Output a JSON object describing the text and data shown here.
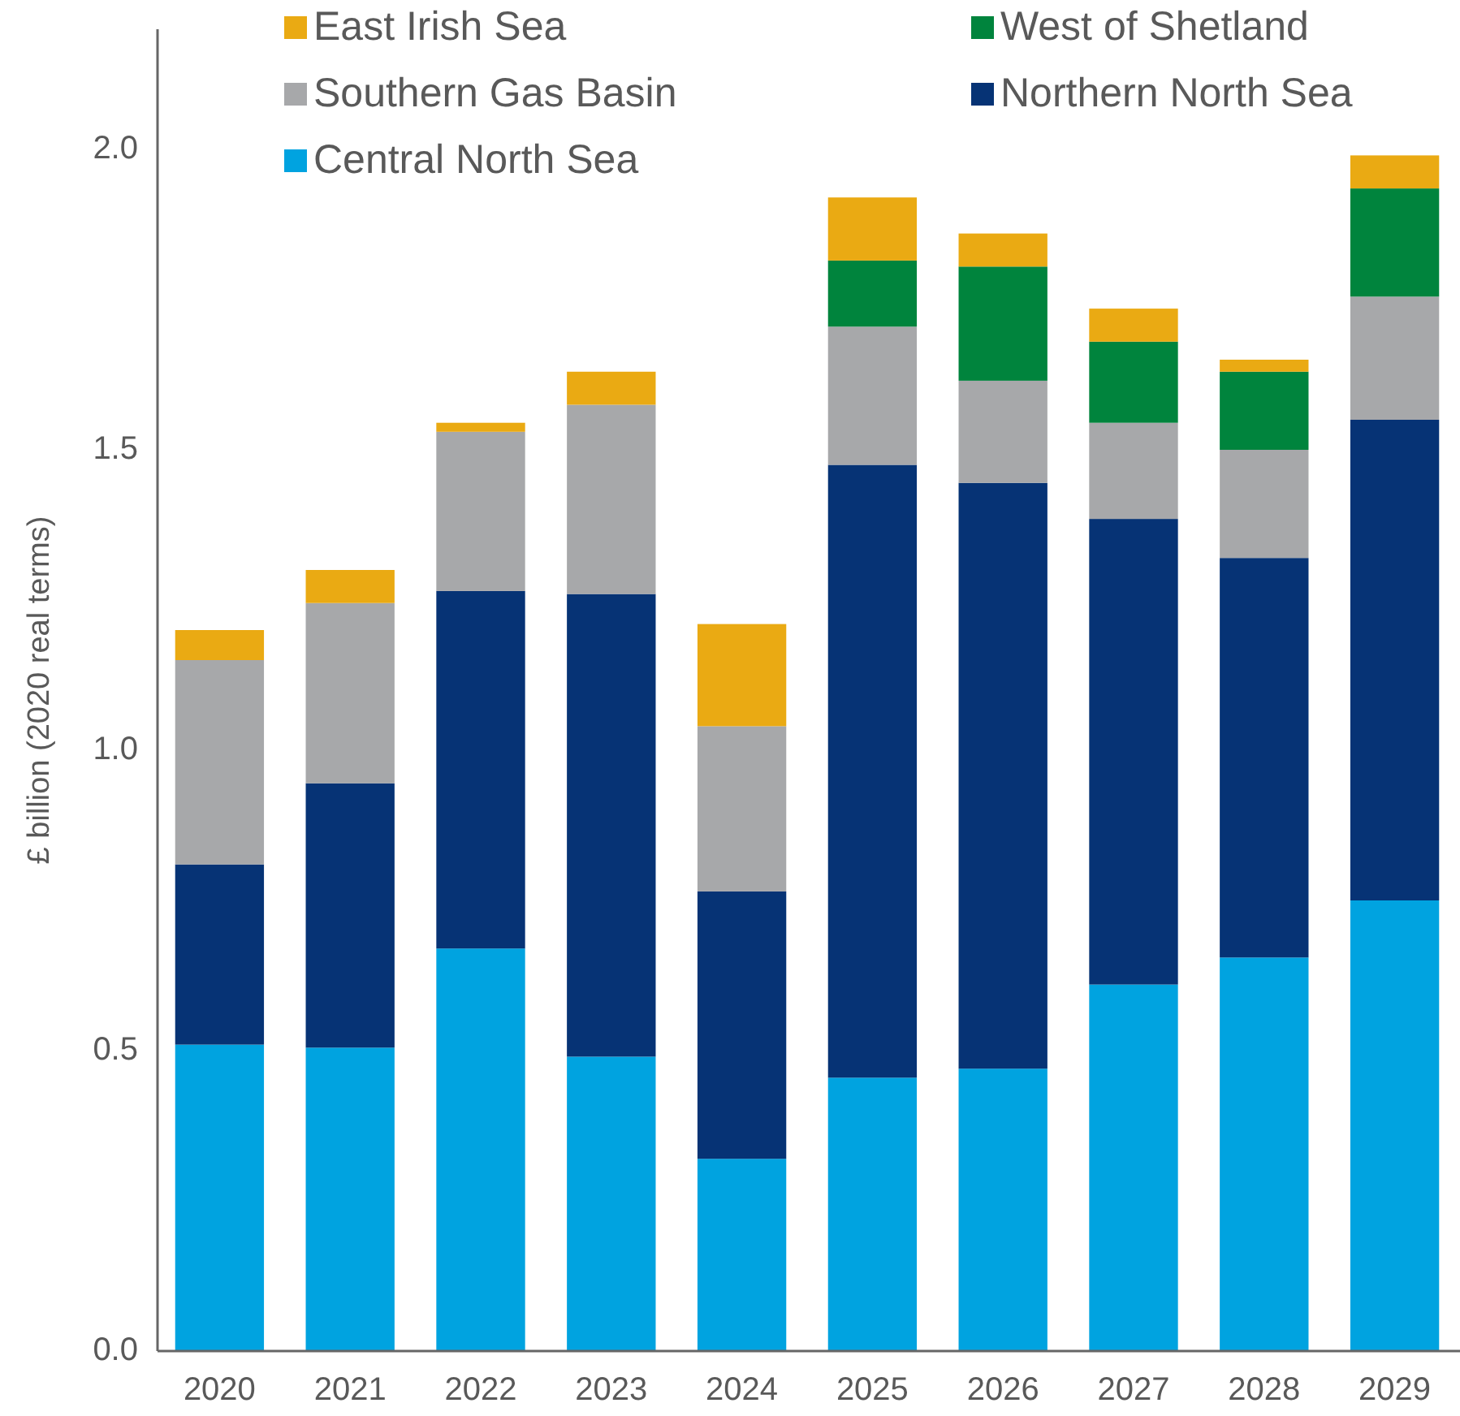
{
  "chart_data": {
    "type": "bar",
    "stacked": true,
    "ylabel": "£ billion (2020 real terms)",
    "categories": [
      "2020",
      "2021",
      "2022",
      "2023",
      "2024",
      "2025",
      "2026",
      "2027",
      "2028",
      "2029"
    ],
    "series": [
      {
        "name": "Central North Sea",
        "color": "#00a3e0",
        "values": [
          0.51,
          0.505,
          0.67,
          0.49,
          0.32,
          0.455,
          0.47,
          0.61,
          0.655,
          0.75
        ]
      },
      {
        "name": "Northern North Sea",
        "color": "#063375",
        "values": [
          0.3,
          0.44,
          0.595,
          0.77,
          0.445,
          1.02,
          0.975,
          0.775,
          0.665,
          0.8
        ]
      },
      {
        "name": "Southern Gas Basin",
        "color": "#a7a8aa",
        "values": [
          0.34,
          0.3,
          0.265,
          0.315,
          0.275,
          0.23,
          0.17,
          0.16,
          0.18,
          0.205
        ]
      },
      {
        "name": "West of Shetland",
        "color": "#00843d",
        "values": [
          0,
          0,
          0,
          0,
          0,
          0.11,
          0.19,
          0.135,
          0.13,
          0.18
        ]
      },
      {
        "name": "East Irish Sea",
        "color": "#eaaa13",
        "values": [
          0.05,
          0.055,
          0.015,
          0.055,
          0.17,
          0.105,
          0.055,
          0.055,
          0.02,
          0.055
        ]
      }
    ],
    "ylim": [
      0,
      2.2
    ],
    "yticks": [
      {
        "value": 0,
        "label": "0.0"
      },
      {
        "value": 0.5,
        "label": "0.5"
      },
      {
        "value": 1,
        "label": "1.0"
      },
      {
        "value": 1.5,
        "label": "1.5"
      },
      {
        "value": 2,
        "label": "2.0"
      }
    ],
    "grid": false,
    "legend": "top"
  }
}
